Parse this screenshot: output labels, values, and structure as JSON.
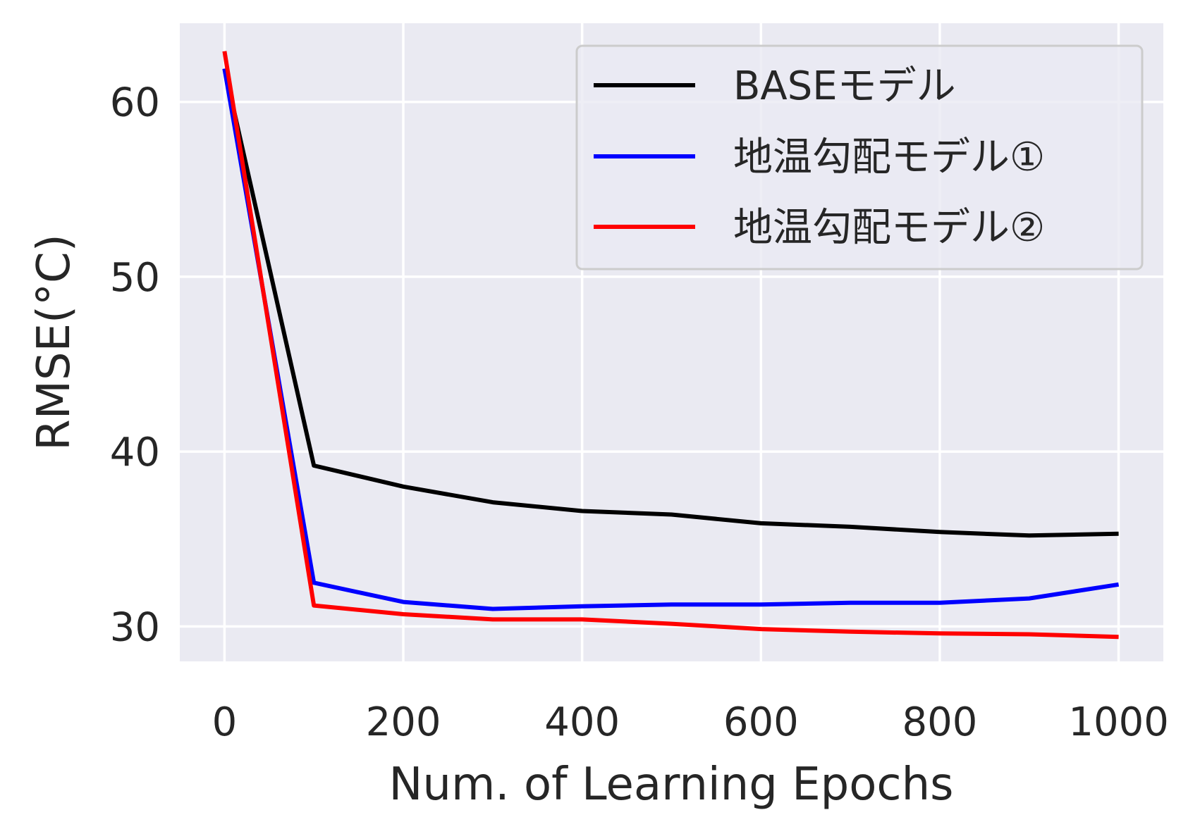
{
  "chart_data": {
    "type": "line",
    "title": "",
    "xlabel": "Num. of Learning Epochs",
    "ylabel": "RMSE(°C)",
    "x": [
      0,
      100,
      200,
      300,
      400,
      500,
      600,
      700,
      800,
      900,
      1000
    ],
    "xlim": [
      -50,
      1050
    ],
    "ylim": [
      28,
      64.5
    ],
    "xticks": [
      0,
      200,
      400,
      600,
      800,
      1000
    ],
    "xtick_labels": [
      "0",
      "200",
      "400",
      "600",
      "800",
      "1000"
    ],
    "yticks": [
      30,
      40,
      50,
      60
    ],
    "ytick_labels": [
      "30",
      "40",
      "50",
      "60"
    ],
    "grid": true,
    "legend_position": "top-right",
    "series": [
      {
        "name": "BASEモデル",
        "color": "#000000",
        "values": [
          61.9,
          39.2,
          38.0,
          37.1,
          36.6,
          36.4,
          35.9,
          35.7,
          35.4,
          35.2,
          35.3
        ]
      },
      {
        "name": "地温勾配モデル①",
        "color": "#0000ff",
        "values": [
          61.9,
          32.5,
          31.4,
          31.0,
          31.15,
          31.25,
          31.25,
          31.35,
          31.35,
          31.6,
          32.4
        ]
      },
      {
        "name": "地温勾配モデル②",
        "color": "#ff0000",
        "values": [
          62.9,
          31.2,
          30.7,
          30.4,
          30.4,
          30.15,
          29.85,
          29.7,
          29.6,
          29.55,
          29.4
        ]
      }
    ]
  }
}
